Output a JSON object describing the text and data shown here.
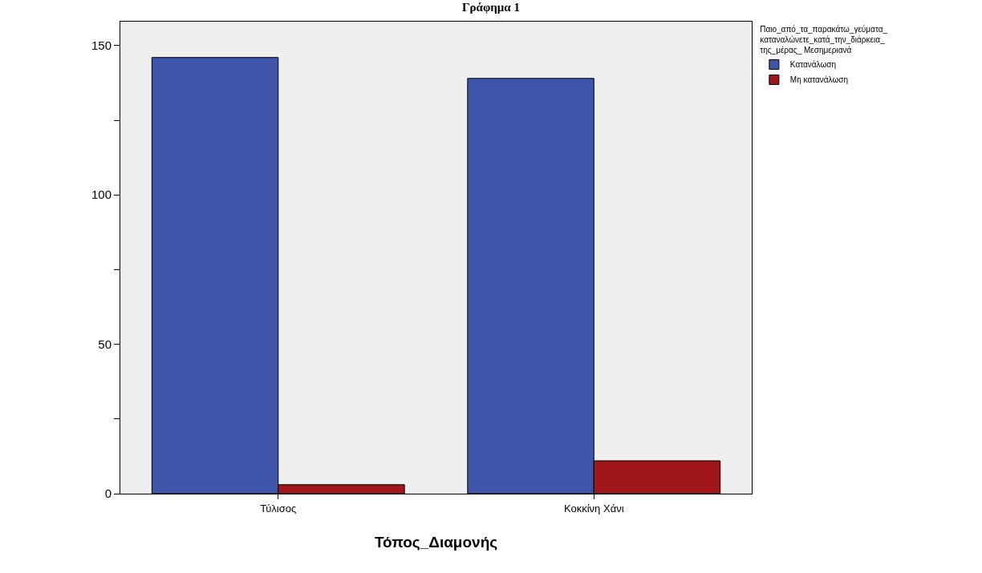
{
  "chart_data": {
    "type": "bar",
    "title": "Γράφημα 1",
    "xlabel": "Τόπος_Διαμονής",
    "legend_title": "Παιο_από_τα_παρακάτω_γεύματα_\nκαταναλώνετε_κατά_την_διάρκεια_\nτης_μέρας_ Μεσημεριανά",
    "categories": [
      "Τύλισος",
      "Κοκκίνη Χάνι"
    ],
    "series": [
      {
        "name": "Κατανάλωση",
        "color": "#3d55a8",
        "values": [
          146,
          139
        ]
      },
      {
        "name": "Μη κατανάλωση",
        "color": "#a0161b",
        "values": [
          3,
          11
        ]
      }
    ],
    "ylim": [
      0,
      158
    ],
    "yticks": [
      0,
      {
        "value": 25,
        "label": null
      },
      50,
      {
        "value": 75,
        "label": null
      },
      100,
      {
        "value": 125,
        "label": null
      },
      150
    ],
    "grid": false,
    "legend": "top right"
  }
}
